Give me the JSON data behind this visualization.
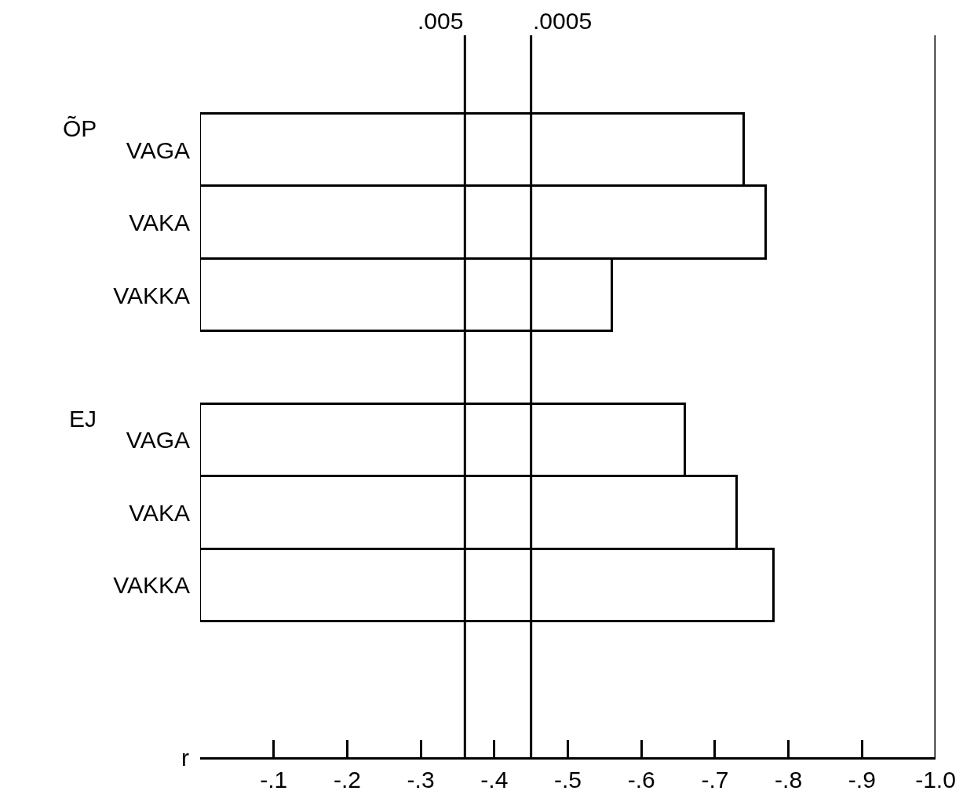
{
  "chart_data": {
    "type": "bar",
    "orientation": "horizontal",
    "categories": [
      "VAGA",
      "VAKA",
      "VAKKA",
      null,
      "VAGA",
      "VAKA",
      "VAKKA"
    ],
    "values": [
      -0.74,
      -0.77,
      -0.56,
      null,
      -0.66,
      -0.73,
      -0.78
    ],
    "color": "#ffffff",
    "xlabel": "r",
    "xlim": [
      0,
      -1.0
    ],
    "xticks": [
      {
        "value": -0.1,
        "label": "-.1"
      },
      {
        "value": -0.2,
        "label": "-.2"
      },
      {
        "value": -0.3,
        "label": "-.3"
      },
      {
        "value": -0.4,
        "label": "-.4"
      },
      {
        "value": -0.5,
        "label": "-.5"
      },
      {
        "value": -0.6,
        "label": "-.6"
      },
      {
        "value": -0.7,
        "label": "-.7"
      },
      {
        "value": -0.8,
        "label": "-.8"
      },
      {
        "value": -0.9,
        "label": "-.9"
      },
      {
        "value": -1.0,
        "label": "-1.0"
      }
    ],
    "ref_lines": [
      {
        "axis": "x",
        "value": -0.36
      },
      {
        "axis": "x",
        "value": -0.45
      },
      {
        "axis": "x",
        "value": -1.0
      }
    ],
    "annotations": [
      "ÕP",
      "EJ",
      ".005",
      ".0005"
    ]
  }
}
